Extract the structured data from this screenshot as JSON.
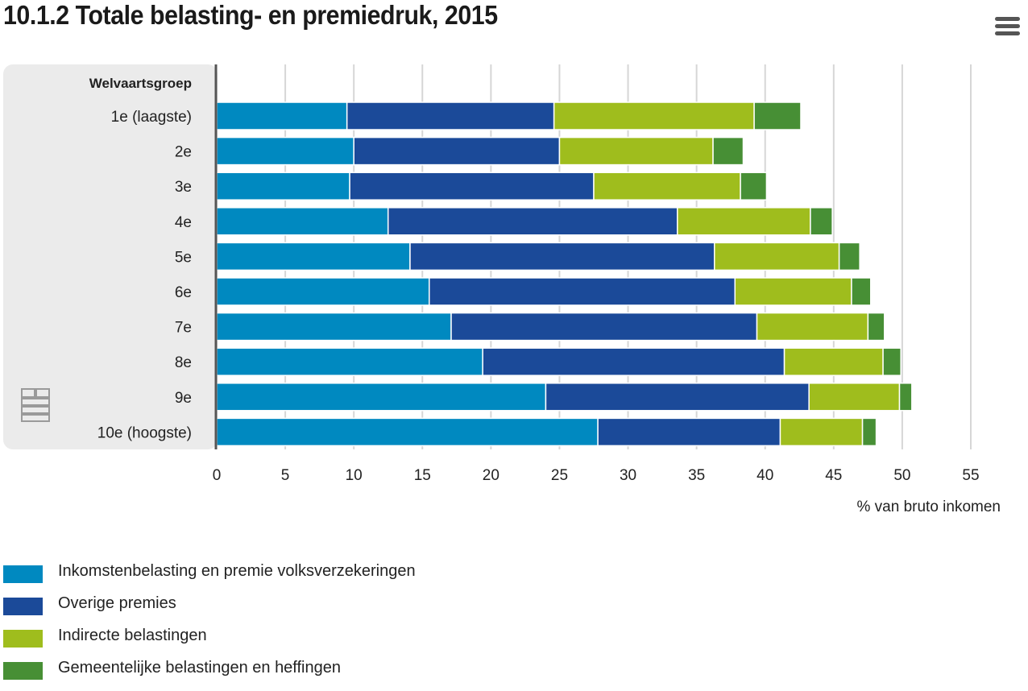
{
  "header": {
    "title": "10.1.2 Totale belasting- en premiedruk, 2015",
    "menu_icon": "hamburger-menu-icon"
  },
  "logo": {
    "icon": "cbs-logo-icon"
  },
  "chart_data": {
    "type": "bar",
    "orientation": "horizontal",
    "stacked": true,
    "title": "10.1.2 Totale belasting- en premiedruk, 2015",
    "category_axis_title": "Welvaartsgroep",
    "categories": [
      "1e (laagste)",
      "2e",
      "3e",
      "4e",
      "5e",
      "6e",
      "7e",
      "8e",
      "9e",
      "10e (hoogste)"
    ],
    "series": [
      {
        "name": "Inkomstenbelasting en premie volksverzekeringen",
        "color": "#0089C0",
        "values": [
          9.5,
          10.0,
          9.7,
          12.5,
          14.1,
          15.5,
          17.1,
          19.4,
          24.0,
          27.8
        ]
      },
      {
        "name": "Overige premies",
        "color": "#1B4A99",
        "values": [
          15.1,
          15.0,
          17.8,
          21.1,
          22.2,
          22.3,
          22.3,
          22.0,
          19.2,
          13.3
        ]
      },
      {
        "name": "Indirecte belastingen",
        "color": "#9FBD1D",
        "values": [
          14.6,
          11.2,
          10.7,
          9.7,
          9.1,
          8.5,
          8.1,
          7.2,
          6.6,
          6.0
        ]
      },
      {
        "name": "Gemeentelijke belastingen en heffingen",
        "color": "#478F35",
        "values": [
          3.4,
          2.2,
          1.9,
          1.6,
          1.5,
          1.4,
          1.2,
          1.3,
          0.9,
          1.0
        ]
      }
    ],
    "xlabel": "% van bruto inkomen",
    "ylabel": "Welvaartsgroep",
    "xlim": [
      0,
      55
    ],
    "xticks": [
      0,
      5,
      10,
      15,
      20,
      25,
      30,
      35,
      40,
      45,
      50,
      55
    ],
    "xtick_labels": [
      "0",
      "5",
      "10",
      "15",
      "20",
      "25",
      "30",
      "35",
      "40",
      "45",
      "50",
      "55"
    ],
    "grid": true,
    "legend_position": "bottom-left"
  }
}
